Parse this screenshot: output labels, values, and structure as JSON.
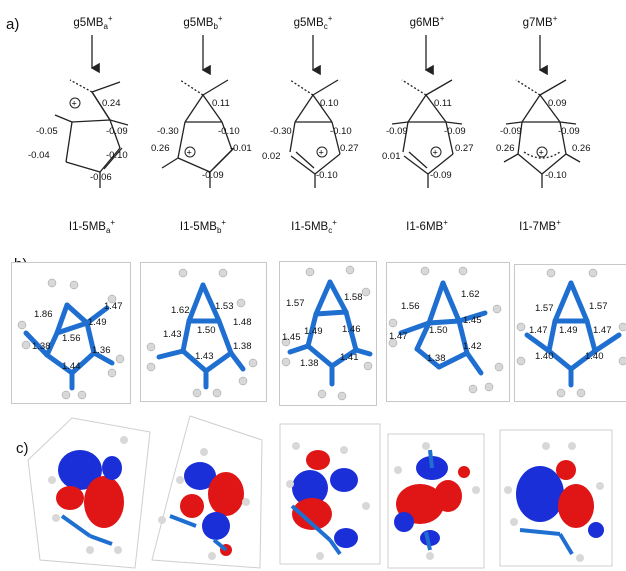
{
  "panel_labels": {
    "a": "a)",
    "b": "b)",
    "c": "c)"
  },
  "structures": [
    {
      "title": "g5MB",
      "title_sub": "a",
      "title_sup": "+",
      "name": "I1-5MB",
      "name_sub": "a",
      "name_sup": "+",
      "charges": [
        "0.24",
        "-0.05",
        "-0.09",
        "-0.04",
        "-0.10",
        "-0.06"
      ]
    },
    {
      "title": "g5MB",
      "title_sub": "b",
      "title_sup": "+",
      "name": "I1-5MB",
      "name_sub": "b",
      "name_sup": "+",
      "charges": [
        "0.11",
        "-0.30",
        "-0.10",
        "0.26",
        "-0.01",
        "-0.09"
      ]
    },
    {
      "title": "g5MB",
      "title_sub": "c",
      "title_sup": "+",
      "name": "I1-5MB",
      "name_sub": "c",
      "name_sup": "+",
      "charges": [
        "0.10",
        "-0.30",
        "-0.10",
        "0.02",
        "0.27",
        "-0.10"
      ]
    },
    {
      "title": "g6MB",
      "title_sub": "",
      "title_sup": "+",
      "name": "I1-6MB",
      "name_sub": "",
      "name_sup": "+",
      "charges": [
        "0.11",
        "-0.09",
        "-0.09",
        "0.01",
        "0.27",
        "-0.09"
      ]
    },
    {
      "title": "g7MB",
      "title_sub": "",
      "title_sup": "+",
      "name": "I1-7MB",
      "name_sub": "",
      "name_sup": "+",
      "charges": [
        "0.09",
        "-0.09",
        "-0.09",
        "0.26",
        "0.26",
        "-0.10"
      ]
    }
  ],
  "plus_symbol": "+",
  "bond_lengths": [
    [
      "1.86",
      "1.47",
      "1.49",
      "1.56",
      "1.38",
      "1.36",
      "1.44"
    ],
    [
      "1.62",
      "1.53",
      "1.48",
      "1.50",
      "1.43",
      "1.38",
      "1.43"
    ],
    [
      "1.57",
      "1.58",
      "1.49",
      "1.46",
      "1.45",
      "1.41",
      "1.38"
    ],
    [
      "1.56",
      "1.62",
      "1.50",
      "1.45",
      "1.47",
      "1.42",
      "1.38"
    ],
    [
      "1.57",
      "1.57",
      "1.47",
      "1.49",
      "1.47",
      "1.40",
      "1.40"
    ]
  ],
  "colors": {
    "bond": "#1f6fd1",
    "hydrogen": "#d8d8d8",
    "lobe_pos": "#e01515",
    "lobe_neg": "#1a2fd8"
  }
}
